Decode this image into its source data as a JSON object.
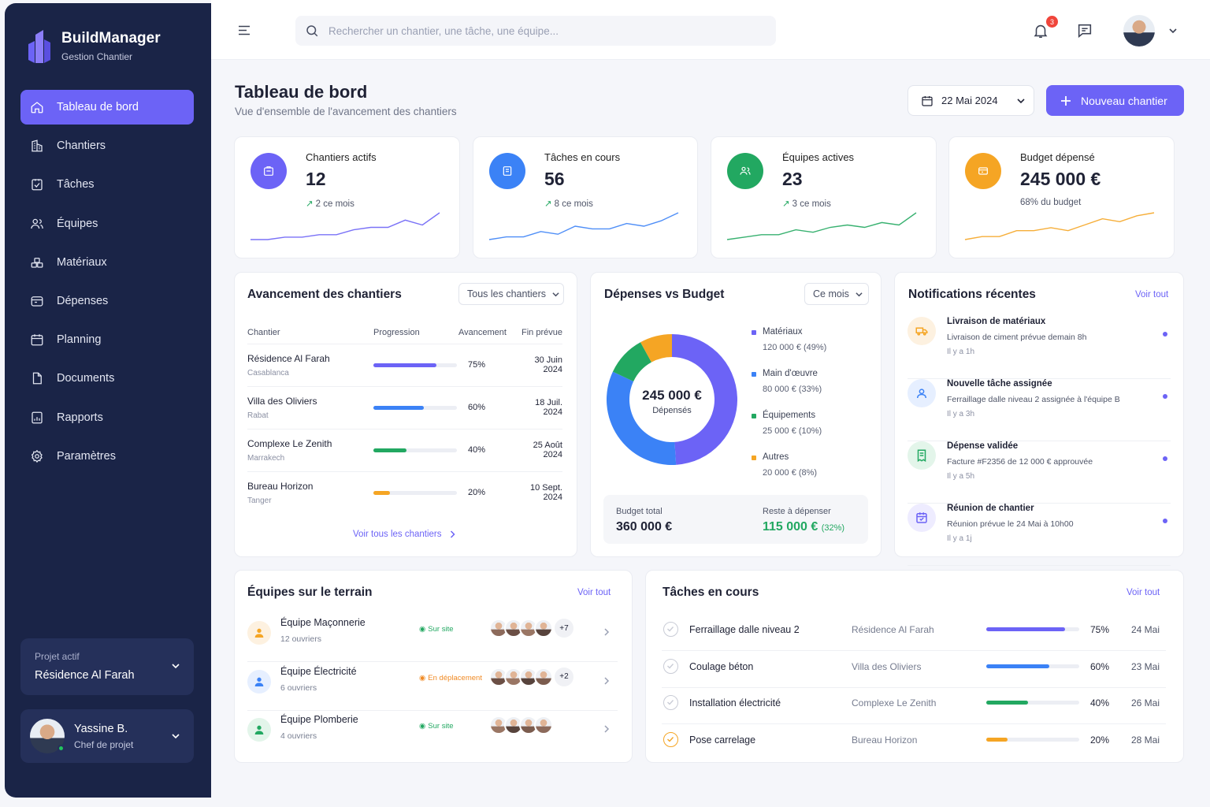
{
  "brand": {
    "title": "BuildManager",
    "subtitle": "Gestion Chantier"
  },
  "nav": [
    {
      "label": "Tableau de bord",
      "icon": "home-icon",
      "active": true
    },
    {
      "label": "Chantiers",
      "icon": "building-icon"
    },
    {
      "label": "Tâches",
      "icon": "task-check-icon"
    },
    {
      "label": "Équipes",
      "icon": "users-icon"
    },
    {
      "label": "Matériaux",
      "icon": "materials-icon"
    },
    {
      "label": "Dépenses",
      "icon": "wallet-icon"
    },
    {
      "label": "Planning",
      "icon": "calendar-icon"
    },
    {
      "label": "Documents",
      "icon": "document-icon"
    },
    {
      "label": "Rapports",
      "icon": "report-icon"
    },
    {
      "label": "Paramètres",
      "icon": "gear-icon"
    }
  ],
  "project": {
    "label": "Projet actif",
    "name": "Résidence Al Farah"
  },
  "user": {
    "name": "Yassine B.",
    "role": "Chef de projet"
  },
  "search": {
    "placeholder": "Rechercher un chantier, une tâche, une équipe..."
  },
  "notifications_count": "3",
  "header": {
    "title": "Tableau de bord",
    "subtitle": "Vue d'ensemble de l'avancement des chantiers",
    "date": "22 Mai 2024",
    "new_button": "Nouveau chantier"
  },
  "kpis": [
    {
      "label": "Chantiers actifs",
      "value": "12",
      "change": "2 ce mois",
      "color": "#6c63f6",
      "spark": [
        2,
        2,
        3,
        3,
        4,
        4,
        6,
        7,
        7,
        10,
        8,
        13
      ],
      "up": true
    },
    {
      "label": "Tâches en cours",
      "value": "56",
      "change": "8 ce mois",
      "color": "#3b82f6",
      "spark": [
        2,
        3,
        3,
        5,
        4,
        7,
        6,
        6,
        8,
        7,
        9,
        12
      ],
      "up": true
    },
    {
      "label": "Équipes actives",
      "value": "23",
      "change": "3 ce mois",
      "color": "#22a861",
      "spark": [
        2,
        3,
        4,
        4,
        6,
        5,
        7,
        8,
        7,
        9,
        8,
        13
      ],
      "up": true
    },
    {
      "label": "Budget dépensé",
      "value": "245 000 €",
      "change": "68% du budget",
      "color": "#f5a524",
      "spark": [
        2,
        3,
        3,
        5,
        5,
        6,
        5,
        7,
        9,
        8,
        10,
        11
      ],
      "up": false
    }
  ],
  "progress": {
    "title": "Avancement des chantiers",
    "filter": "Tous les chantiers",
    "columns": [
      "Chantier",
      "Progression",
      "Avancement",
      "Fin prévue"
    ],
    "rows": [
      {
        "name": "Résidence Al Farah",
        "city": "Casablanca",
        "pct": 75,
        "pct_label": "75%",
        "end": "30 Juin 2024",
        "color": "#6c63f6"
      },
      {
        "name": "Villa des Oliviers",
        "city": "Rabat",
        "pct": 60,
        "pct_label": "60%",
        "end": "18 Juil. 2024",
        "color": "#3b82f6"
      },
      {
        "name": "Complexe Le Zenith",
        "city": "Marrakech",
        "pct": 40,
        "pct_label": "40%",
        "end": "25 Août 2024",
        "color": "#22a861"
      },
      {
        "name": "Bureau Horizon",
        "city": "Tanger",
        "pct": 20,
        "pct_label": "20%",
        "end": "10 Sept. 2024",
        "color": "#f5a524"
      }
    ],
    "link": "Voir tous les chantiers"
  },
  "budget": {
    "title": "Dépenses vs Budget",
    "filter": "Ce mois",
    "center_value": "245 000 €",
    "center_label": "Dépensés",
    "items": [
      {
        "name": "Matériaux",
        "value": "120 000 € (49%)",
        "share": 49,
        "color": "#6c63f6"
      },
      {
        "name": "Main d'œuvre",
        "value": "80 000 € (33%)",
        "share": 33,
        "color": "#3b82f6"
      },
      {
        "name": "Équipements",
        "value": "25 000 € (10%)",
        "share": 10,
        "color": "#22a861"
      },
      {
        "name": "Autres",
        "value": "20 000 € (8%)",
        "share": 8,
        "color": "#f5a524"
      }
    ],
    "total_label": "Budget total",
    "total": "360 000 €",
    "remain_label": "Reste à dépenser",
    "remain": "115 000 €",
    "remain_pct": "(32%)"
  },
  "notifications": {
    "title": "Notifications récentes",
    "link": "Voir tout",
    "items": [
      {
        "title": "Livraison de matériaux",
        "desc": "Livraison de ciment prévue demain 8h",
        "when": "Il y a 1h",
        "icon": "truck-icon",
        "color": "#f5a524",
        "bg": "#fdf1e0"
      },
      {
        "title": "Nouvelle tâche assignée",
        "desc": "Ferraillage dalle niveau 2 assignée à l'équipe B",
        "when": "Il y a 3h",
        "icon": "user-icon",
        "color": "#3b82f6",
        "bg": "#e6efff"
      },
      {
        "title": "Dépense validée",
        "desc": "Facture #F2356 de 12 000 € approuvée",
        "when": "Il y a 5h",
        "icon": "receipt-icon",
        "color": "#22a861",
        "bg": "#e3f5ea"
      },
      {
        "title": "Réunion de chantier",
        "desc": "Réunion prévue le 24 Mai à 10h00",
        "when": "Il y a 1j",
        "icon": "calendar-icon",
        "color": "#6c63f6",
        "bg": "#eeecff"
      }
    ]
  },
  "teams": {
    "title": "Équipes sur le terrain",
    "link": "Voir tout",
    "items": [
      {
        "name": "Équipe Maçonnerie",
        "count": "12 ouvriers",
        "status": "Sur site",
        "status_color": "#22a861",
        "more": "+7",
        "color": "#f5a524",
        "bg": "#fdf1e0"
      },
      {
        "name": "Équipe Électricité",
        "count": "6 ouvriers",
        "status": "En déplacement",
        "status_color": "#f08a24",
        "more": "+2",
        "color": "#3b82f6",
        "bg": "#e6efff"
      },
      {
        "name": "Équipe Plomberie",
        "count": "4 ouvriers",
        "status": "Sur site",
        "status_color": "#22a861",
        "more": "",
        "color": "#22a861",
        "bg": "#e3f5ea"
      }
    ]
  },
  "tasks": {
    "title": "Tâches en cours",
    "link": "Voir tout",
    "items": [
      {
        "name": "Ferraillage dalle niveau 2",
        "site": "Résidence Al Farah",
        "pct": 75,
        "pct_label": "75%",
        "date": "24 Mai",
        "color": "#6c63f6"
      },
      {
        "name": "Coulage béton",
        "site": "Villa des Oliviers",
        "pct": 60,
        "pct_label": "60%",
        "date": "23 Mai",
        "color": "#3b82f6"
      },
      {
        "name": "Installation électricité",
        "site": "Complexe Le Zenith",
        "pct": 40,
        "pct_label": "40%",
        "date": "26 Mai",
        "color": "#22a861"
      },
      {
        "name": "Pose carrelage",
        "site": "Bureau Horizon",
        "pct": 20,
        "pct_label": "20%",
        "date": "28 Mai",
        "color": "#f5a524"
      }
    ]
  }
}
